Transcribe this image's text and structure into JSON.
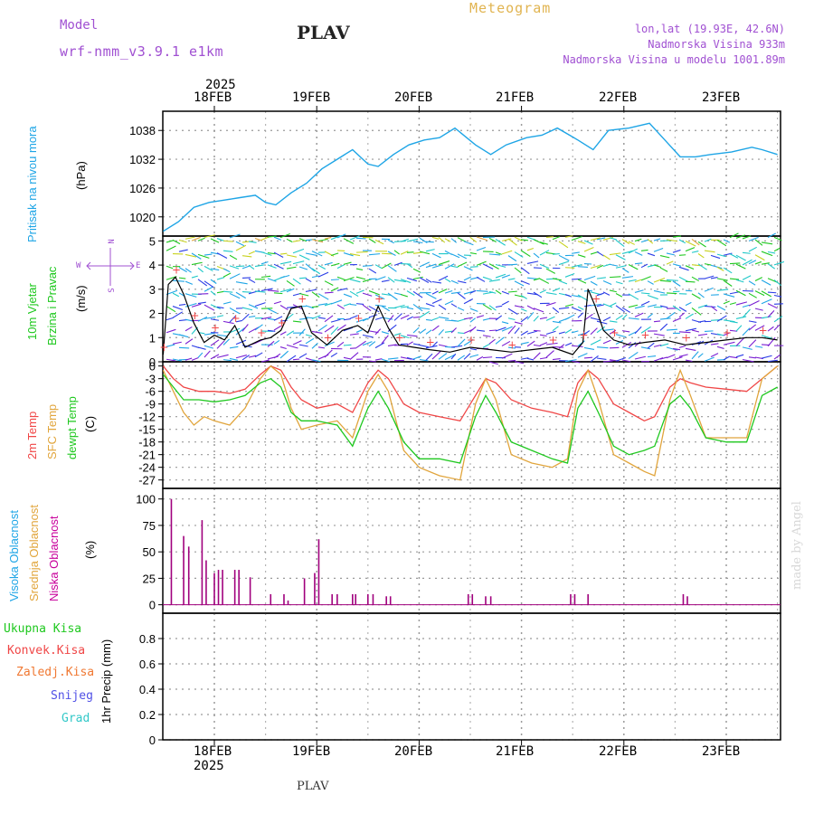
{
  "header": {
    "model_label": "Model",
    "model_name": "wrf-nmm_v3.9.1 e1km",
    "station": "PLAV",
    "product": "Meteogram",
    "lonlat": "lon,lat (19.93E, 42.6N)",
    "elevation": "Nadmorska Visina 933m",
    "model_elevation": "Nadmorska Visina u modelu 1001.89m",
    "footer_station": "PLAV",
    "credit": "made by Angel"
  },
  "colors": {
    "pressure": "#1ea5e6",
    "temp2m": "#f04646",
    "sfc": "#e1a53c",
    "dewpt": "#1ec81e",
    "cloud": "#a0007d",
    "purple_text": "#a050d2",
    "gold_text": "#e1b450"
  },
  "axis": {
    "year_top": "2025",
    "year_bottom": "2025",
    "days": [
      "18FEB",
      "19FEB",
      "20FEB",
      "21FEB",
      "22FEB",
      "23FEB"
    ]
  },
  "panels": {
    "pressure": {
      "label1": "Pritisak na nivou mora",
      "unit": "(hPa)"
    },
    "wind": {
      "label1": "10m Vjetar",
      "label2": "Brzina i Pravac",
      "unit": "(m/s)",
      "compass_n": "N",
      "compass_s": "S",
      "compass_e": "E",
      "compass_w": "W"
    },
    "temp": {
      "label1": "2m Temp",
      "label2": "SFC Temp",
      "label3": "dewpt Temp",
      "unit": "(C)"
    },
    "cloud": {
      "label1": "Visoka Oblacnost",
      "label2": "Srednja Oblacnost",
      "label3": "Niska Oblacnost",
      "unit": "(%)"
    },
    "precip": {
      "legend": [
        "Ukupna Kisa",
        "Konvek.Kisa",
        "Zaledj.Kisa",
        "Snijeg",
        "Grad"
      ],
      "ylabel": "1hr Precip (mm)"
    }
  },
  "chart_data": [
    {
      "type": "line",
      "x_unit": "days from 18FEB 00UTC",
      "series": [
        {
          "values": [
            [
              -0.5,
              1017
            ],
            [
              -0.35,
              1019
            ],
            [
              -0.2,
              1022
            ],
            [
              -0.05,
              1023
            ],
            [
              0.1,
              1023.5
            ],
            [
              0.25,
              1024
            ],
            [
              0.4,
              1024.5
            ],
            [
              0.5,
              1023
            ],
            [
              0.6,
              1022.5
            ],
            [
              0.75,
              1025
            ],
            [
              0.9,
              1027
            ],
            [
              1.05,
              1030
            ],
            [
              1.2,
              1032
            ],
            [
              1.35,
              1034
            ],
            [
              1.5,
              1031
            ],
            [
              1.6,
              1030.5
            ],
            [
              1.75,
              1033
            ],
            [
              1.9,
              1035
            ],
            [
              2.05,
              1036
            ],
            [
              2.2,
              1036.5
            ],
            [
              2.35,
              1038.5
            ],
            [
              2.55,
              1035
            ],
            [
              2.7,
              1033
            ],
            [
              2.85,
              1035
            ],
            [
              3.05,
              1036.5
            ],
            [
              3.2,
              1037
            ],
            [
              3.35,
              1038.5
            ],
            [
              3.55,
              1036
            ],
            [
              3.7,
              1034
            ],
            [
              3.85,
              1038
            ],
            [
              4.05,
              1038.5
            ],
            [
              4.25,
              1039.5
            ],
            [
              4.4,
              1036
            ],
            [
              4.55,
              1032.5
            ],
            [
              4.7,
              1032.5
            ],
            [
              4.85,
              1033
            ],
            [
              5.05,
              1033.5
            ],
            [
              5.25,
              1034.5
            ],
            [
              5.35,
              1034
            ],
            [
              5.5,
              1033
            ]
          ]
        }
      ],
      "ylim": [
        1016,
        1042
      ],
      "yticks": [
        1020,
        1026,
        1032,
        1038
      ]
    },
    {
      "type": "line",
      "x_unit": "days from 18FEB 00UTC",
      "series": [
        {
          "values": [
            [
              -0.5,
              0.3
            ],
            [
              -0.45,
              3.2
            ],
            [
              -0.38,
              3.5
            ],
            [
              -0.3,
              2.8
            ],
            [
              -0.2,
              1.6
            ],
            [
              -0.1,
              0.8
            ],
            [
              0.0,
              1.1
            ],
            [
              0.1,
              0.9
            ],
            [
              0.2,
              1.5
            ],
            [
              0.3,
              0.6
            ],
            [
              0.45,
              0.9
            ],
            [
              0.55,
              1.0
            ],
            [
              0.65,
              1.3
            ],
            [
              0.75,
              2.2
            ],
            [
              0.85,
              2.3
            ],
            [
              0.95,
              1.2
            ],
            [
              1.1,
              0.7
            ],
            [
              1.25,
              1.3
            ],
            [
              1.4,
              1.5
            ],
            [
              1.5,
              1.2
            ],
            [
              1.6,
              2.3
            ],
            [
              1.7,
              1.4
            ],
            [
              1.8,
              0.7
            ],
            [
              1.95,
              0.6
            ],
            [
              2.1,
              0.5
            ],
            [
              2.3,
              0.4
            ],
            [
              2.5,
              0.6
            ],
            [
              2.7,
              0.5
            ],
            [
              2.9,
              0.4
            ],
            [
              3.1,
              0.5
            ],
            [
              3.3,
              0.6
            ],
            [
              3.5,
              0.3
            ],
            [
              3.6,
              0.8
            ],
            [
              3.65,
              3.0
            ],
            [
              3.72,
              2.3
            ],
            [
              3.8,
              1.3
            ],
            [
              3.9,
              0.9
            ],
            [
              4.05,
              0.7
            ],
            [
              4.2,
              0.8
            ],
            [
              4.4,
              0.9
            ],
            [
              4.6,
              0.7
            ],
            [
              4.8,
              0.8
            ],
            [
              5.0,
              0.9
            ],
            [
              5.2,
              1.0
            ],
            [
              5.35,
              1.0
            ],
            [
              5.5,
              0.9
            ]
          ]
        }
      ],
      "ylim": [
        0,
        5.2
      ],
      "yticks": [
        0,
        1,
        2,
        3,
        4,
        5
      ]
    },
    {
      "type": "line",
      "x_unit": "days from 18FEB 00UTC",
      "series": [
        {
          "values": [
            [
              -0.5,
              0
            ],
            [
              -0.4,
              -3
            ],
            [
              -0.3,
              -5
            ],
            [
              -0.15,
              -6
            ],
            [
              0.0,
              -6
            ],
            [
              0.15,
              -6.5
            ],
            [
              0.3,
              -5.5
            ],
            [
              0.45,
              -2
            ],
            [
              0.55,
              0
            ],
            [
              0.65,
              -1
            ],
            [
              0.75,
              -5
            ],
            [
              0.85,
              -8
            ],
            [
              1.0,
              -10
            ],
            [
              1.2,
              -9
            ],
            [
              1.35,
              -11
            ],
            [
              1.5,
              -4
            ],
            [
              1.6,
              -1
            ],
            [
              1.7,
              -3
            ],
            [
              1.85,
              -9
            ],
            [
              2.0,
              -11
            ],
            [
              2.2,
              -12
            ],
            [
              2.4,
              -13
            ],
            [
              2.55,
              -7
            ],
            [
              2.65,
              -3
            ],
            [
              2.75,
              -4
            ],
            [
              2.9,
              -8
            ],
            [
              3.1,
              -10
            ],
            [
              3.3,
              -11
            ],
            [
              3.45,
              -12
            ],
            [
              3.55,
              -4
            ],
            [
              3.65,
              -1
            ],
            [
              3.75,
              -3
            ],
            [
              3.9,
              -9
            ],
            [
              4.05,
              -11
            ],
            [
              4.2,
              -13
            ],
            [
              4.3,
              -12
            ],
            [
              4.45,
              -5
            ],
            [
              4.55,
              -3
            ],
            [
              4.65,
              -4
            ],
            [
              4.8,
              -5
            ],
            [
              5.0,
              -5.5
            ],
            [
              5.2,
              -6
            ],
            [
              5.35,
              -3
            ],
            [
              5.5,
              0
            ]
          ]
        },
        {
          "values": [
            [
              -0.5,
              -1
            ],
            [
              -0.4,
              -6
            ],
            [
              -0.3,
              -11
            ],
            [
              -0.2,
              -14
            ],
            [
              -0.1,
              -12
            ],
            [
              0.0,
              -13
            ],
            [
              0.15,
              -14
            ],
            [
              0.3,
              -10
            ],
            [
              0.45,
              -3
            ],
            [
              0.55,
              0
            ],
            [
              0.65,
              -2
            ],
            [
              0.75,
              -10
            ],
            [
              0.85,
              -15
            ],
            [
              1.0,
              -14
            ],
            [
              1.2,
              -13
            ],
            [
              1.35,
              -17
            ],
            [
              1.5,
              -6
            ],
            [
              1.6,
              -2
            ],
            [
              1.7,
              -6
            ],
            [
              1.85,
              -20
            ],
            [
              2.0,
              -24
            ],
            [
              2.2,
              -26
            ],
            [
              2.4,
              -27
            ],
            [
              2.55,
              -9
            ],
            [
              2.65,
              -3
            ],
            [
              2.75,
              -8
            ],
            [
              2.9,
              -21
            ],
            [
              3.1,
              -23
            ],
            [
              3.3,
              -24
            ],
            [
              3.45,
              -22
            ],
            [
              3.55,
              -6
            ],
            [
              3.65,
              -1
            ],
            [
              3.75,
              -8
            ],
            [
              3.9,
              -21
            ],
            [
              4.05,
              -23
            ],
            [
              4.2,
              -25
            ],
            [
              4.3,
              -26
            ],
            [
              4.45,
              -8
            ],
            [
              4.55,
              -1
            ],
            [
              4.65,
              -7
            ],
            [
              4.8,
              -17
            ],
            [
              5.0,
              -17
            ],
            [
              5.2,
              -17
            ],
            [
              5.35,
              -3
            ],
            [
              5.5,
              0
            ]
          ]
        },
        {
          "values": [
            [
              -0.5,
              -2
            ],
            [
              -0.4,
              -5
            ],
            [
              -0.3,
              -8
            ],
            [
              -0.15,
              -8
            ],
            [
              0.0,
              -8.5
            ],
            [
              0.15,
              -8
            ],
            [
              0.3,
              -7
            ],
            [
              0.45,
              -4
            ],
            [
              0.55,
              -3
            ],
            [
              0.65,
              -5
            ],
            [
              0.75,
              -11
            ],
            [
              0.85,
              -13
            ],
            [
              1.0,
              -13
            ],
            [
              1.2,
              -14
            ],
            [
              1.35,
              -19
            ],
            [
              1.5,
              -10
            ],
            [
              1.6,
              -6
            ],
            [
              1.7,
              -10
            ],
            [
              1.85,
              -18
            ],
            [
              2.0,
              -22
            ],
            [
              2.2,
              -22
            ],
            [
              2.4,
              -23
            ],
            [
              2.55,
              -12
            ],
            [
              2.65,
              -7
            ],
            [
              2.75,
              -11
            ],
            [
              2.9,
              -18
            ],
            [
              3.1,
              -20
            ],
            [
              3.3,
              -22
            ],
            [
              3.45,
              -23
            ],
            [
              3.55,
              -10
            ],
            [
              3.65,
              -6
            ],
            [
              3.75,
              -11
            ],
            [
              3.9,
              -19
            ],
            [
              4.05,
              -21
            ],
            [
              4.2,
              -20
            ],
            [
              4.3,
              -19
            ],
            [
              4.45,
              -9
            ],
            [
              4.55,
              -7
            ],
            [
              4.65,
              -10
            ],
            [
              4.8,
              -17
            ],
            [
              5.0,
              -18
            ],
            [
              5.2,
              -18
            ],
            [
              5.35,
              -7
            ],
            [
              5.5,
              -5
            ]
          ]
        }
      ],
      "ylim": [
        -29,
        1
      ],
      "yticks": [
        0,
        -3,
        -6,
        -9,
        -12,
        -15,
        -18,
        -21,
        -24,
        -27
      ]
    },
    {
      "type": "bar",
      "x_unit": "days from 18FEB 00UTC",
      "values": [
        [
          -0.42,
          100
        ],
        [
          -0.3,
          65
        ],
        [
          -0.25,
          55
        ],
        [
          -0.12,
          80
        ],
        [
          -0.08,
          42
        ],
        [
          0.0,
          30
        ],
        [
          0.04,
          33
        ],
        [
          0.08,
          33
        ],
        [
          0.2,
          33
        ],
        [
          0.24,
          33
        ],
        [
          0.35,
          26
        ],
        [
          0.55,
          10
        ],
        [
          0.68,
          10
        ],
        [
          0.72,
          4
        ],
        [
          0.88,
          25
        ],
        [
          0.98,
          30
        ],
        [
          1.02,
          62
        ],
        [
          1.15,
          10
        ],
        [
          1.2,
          10
        ],
        [
          1.35,
          10
        ],
        [
          1.38,
          10
        ],
        [
          1.5,
          10
        ],
        [
          1.55,
          10
        ],
        [
          1.68,
          8
        ],
        [
          1.72,
          8
        ],
        [
          2.48,
          10
        ],
        [
          2.52,
          10
        ],
        [
          2.65,
          8
        ],
        [
          2.7,
          8
        ],
        [
          3.48,
          10
        ],
        [
          3.52,
          10
        ],
        [
          3.65,
          10
        ],
        [
          4.58,
          10
        ],
        [
          4.62,
          8
        ]
      ],
      "ylim": [
        -8,
        110
      ],
      "yticks": [
        0,
        25,
        50,
        75,
        100
      ]
    },
    {
      "type": "bar",
      "x_unit": "days from 18FEB 00UTC",
      "values": [],
      "ylim": [
        0,
        1.0
      ],
      "yticks": [
        0,
        0.2,
        0.4,
        0.6,
        0.8
      ]
    }
  ]
}
